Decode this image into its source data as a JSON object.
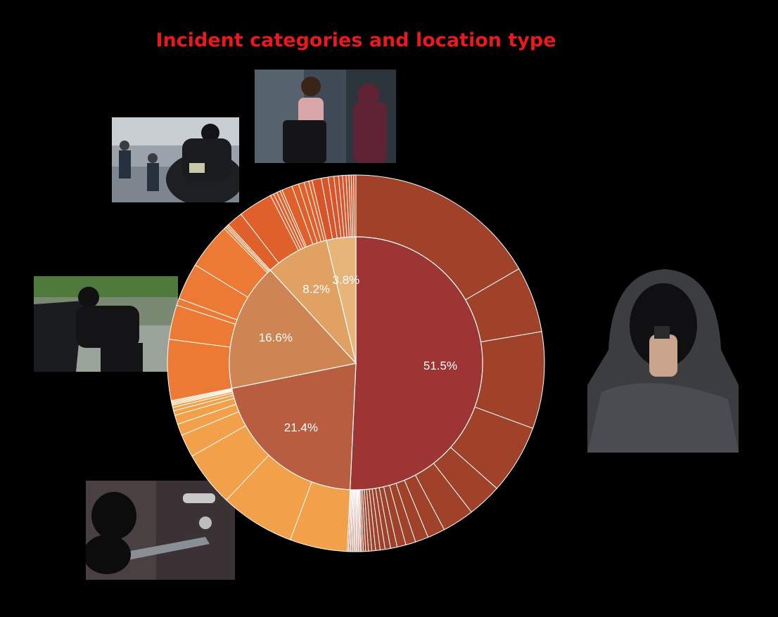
{
  "title": "Incident categories and location type",
  "images": [
    {
      "name": "robber-with-cash-bag-photo"
    },
    {
      "name": "pickpocket-purse-photo"
    },
    {
      "name": "car-break-in-photo"
    },
    {
      "name": "crowbar-door-break-in-photo"
    },
    {
      "name": "hooded-gunman-photo"
    }
  ],
  "chart_data": {
    "type": "sunburst",
    "title": "Incident categories and location type",
    "inner": [
      {
        "label": "51.5%",
        "value": 51.5,
        "color": "#9d3534"
      },
      {
        "label": "21.4%",
        "value": 21.4,
        "color": "#b95d40"
      },
      {
        "label": "16.6%",
        "value": 16.6,
        "color": "#cf8454"
      },
      {
        "label": "8.2%",
        "value": 8.2,
        "color": "#e1a162"
      },
      {
        "label": "3.8%",
        "value": 3.8,
        "color": "#e7b57a"
      }
    ],
    "outer": [
      {
        "parent": 0,
        "color": "#a0412a",
        "values": [
          17.6,
          6.0,
          8.8,
          6.3,
          3.1,
          2.9,
          1.6,
          1.2,
          0.9,
          0.8,
          0.6,
          0.5,
          0.45,
          0.4,
          0.35,
          0.3,
          0.25,
          0.2,
          0.15,
          0.1,
          0.1,
          0.1,
          0.1,
          0.1,
          0.1,
          0.1,
          0.1,
          0.1,
          0.1,
          0.1,
          0.1,
          0.1
        ]
      },
      {
        "parent": 1,
        "color": "#f2a049",
        "values": [
          5.0,
          6.5,
          4.8,
          2.0,
          1.0,
          0.8,
          0.4,
          0.3,
          0.2,
          0.1,
          0.1,
          0.1,
          0.1
        ]
      },
      {
        "parent": 2,
        "color": "#ec7a35",
        "values": [
          5.3,
          3.0,
          0.6,
          3.2,
          4.0,
          0.2,
          0.15,
          0.15
        ]
      },
      {
        "parent": 3,
        "color": "#e0602c",
        "values": [
          1.4,
          3.0,
          0.3,
          0.3,
          0.3,
          0.2,
          0.9,
          0.6,
          0.5,
          0.4,
          0.3
        ]
      },
      {
        "parent": 4,
        "color": "#d8542a",
        "values": [
          0.8,
          0.6,
          0.5,
          0.4,
          0.35,
          0.3,
          0.25,
          0.2,
          0.2,
          0.2
        ]
      }
    ]
  }
}
